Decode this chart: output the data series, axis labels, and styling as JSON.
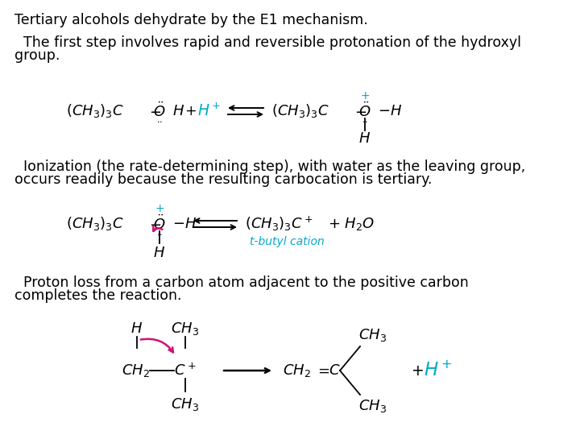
{
  "bg_color": "#ffffff",
  "text_color": "#000000",
  "cyan_color": "#00AACC",
  "pink_color": "#CC1177",
  "title": "Tertiary alcohols dehydrate by the E1 mechanism.",
  "para1_line1": "  The first step involves rapid and reversible protonation of the hydroxyl",
  "para1_line2": "group.",
  "para2_line1": "  Ionization (the rate-determining step), with water as the leaving group,",
  "para2_line2": "occurs readily because the resulting carbocation is tertiary.",
  "para3_line1": "  Proton loss from a carbon atom adjacent to the positive carbon",
  "para3_line2": "completes the reaction.",
  "tbutyl_label": "t-butyl cation",
  "fs": 12.5
}
